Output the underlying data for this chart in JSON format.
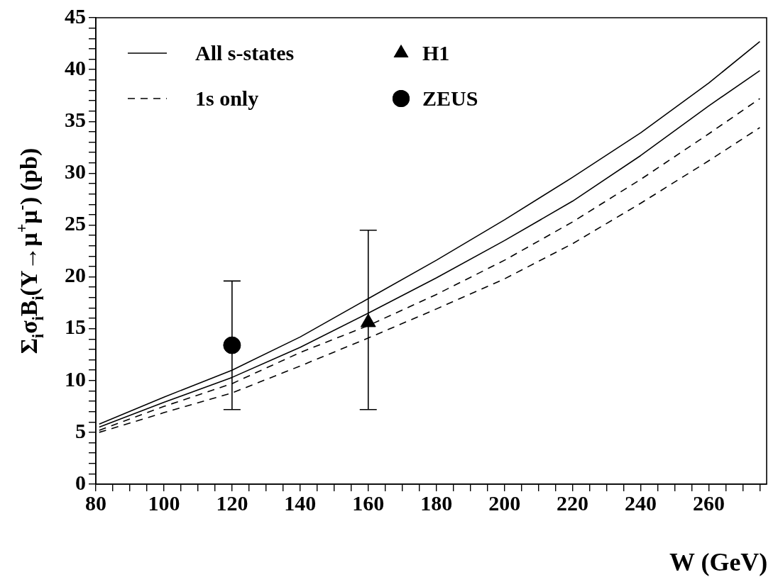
{
  "chart_data": {
    "type": "line",
    "xlabel": "W (GeV)",
    "ylabel": "Σ$_{i}$σ$_{i}$B$_{i}$(Υ→μ$^{+}$μ$^{-}$) (pb)",
    "xlim": [
      80,
      277
    ],
    "ylim": [
      0,
      45
    ],
    "xticks": [
      80,
      {
        "value": 85,
        "label": null
      },
      {
        "value": 90,
        "label": null
      },
      {
        "value": 95,
        "label": null
      },
      100,
      {
        "value": 105,
        "label": null
      },
      {
        "value": 110,
        "label": null
      },
      {
        "value": 115,
        "label": null
      },
      120,
      {
        "value": 125,
        "label": null
      },
      {
        "value": 130,
        "label": null
      },
      {
        "value": 135,
        "label": null
      },
      140,
      {
        "value": 145,
        "label": null
      },
      {
        "value": 150,
        "label": null
      },
      {
        "value": 155,
        "label": null
      },
      160,
      {
        "value": 165,
        "label": null
      },
      {
        "value": 170,
        "label": null
      },
      {
        "value": 175,
        "label": null
      },
      180,
      {
        "value": 185,
        "label": null
      },
      {
        "value": 190,
        "label": null
      },
      {
        "value": 195,
        "label": null
      },
      200,
      {
        "value": 205,
        "label": null
      },
      {
        "value": 210,
        "label": null
      },
      {
        "value": 215,
        "label": null
      },
      220,
      {
        "value": 225,
        "label": null
      },
      {
        "value": 230,
        "label": null
      },
      {
        "value": 235,
        "label": null
      },
      240,
      {
        "value": 245,
        "label": null
      },
      {
        "value": 250,
        "label": null
      },
      {
        "value": 255,
        "label": null
      },
      260,
      {
        "value": 265,
        "label": null
      },
      {
        "value": 270,
        "label": null
      },
      {
        "value": 275,
        "label": null
      }
    ],
    "yticks": [
      0,
      {
        "value": 1,
        "label": null
      },
      {
        "value": 2,
        "label": null
      },
      {
        "value": 3,
        "label": null
      },
      {
        "value": 4,
        "label": null
      },
      5,
      {
        "value": 6,
        "label": null
      },
      {
        "value": 7,
        "label": null
      },
      {
        "value": 8,
        "label": null
      },
      {
        "value": 9,
        "label": null
      },
      10,
      {
        "value": 11,
        "label": null
      },
      {
        "value": 12,
        "label": null
      },
      {
        "value": 13,
        "label": null
      },
      {
        "value": 14,
        "label": null
      },
      15,
      {
        "value": 16,
        "label": null
      },
      {
        "value": 17,
        "label": null
      },
      {
        "value": 18,
        "label": null
      },
      {
        "value": 19,
        "label": null
      },
      20,
      {
        "value": 21,
        "label": null
      },
      {
        "value": 22,
        "label": null
      },
      {
        "value": 23,
        "label": null
      },
      {
        "value": 24,
        "label": null
      },
      25,
      {
        "value": 26,
        "label": null
      },
      {
        "value": 27,
        "label": null
      },
      {
        "value": 28,
        "label": null
      },
      {
        "value": 29,
        "label": null
      },
      30,
      {
        "value": 31,
        "label": null
      },
      {
        "value": 32,
        "label": null
      },
      {
        "value": 33,
        "label": null
      },
      {
        "value": 34,
        "label": null
      },
      35,
      {
        "value": 36,
        "label": null
      },
      {
        "value": 37,
        "label": null
      },
      {
        "value": 38,
        "label": null
      },
      {
        "value": 39,
        "label": null
      },
      40,
      {
        "value": 41,
        "label": null
      },
      {
        "value": 42,
        "label": null
      },
      {
        "value": 43,
        "label": null
      },
      {
        "value": 44,
        "label": null
      },
      45
    ],
    "grid": false,
    "legend": "top left",
    "series": [
      {
        "name": "All s-states",
        "color": "#000000",
        "line_style": "solid",
        "marker": "none",
        "x": [
          81,
          100,
          120,
          140,
          160,
          180,
          200,
          220,
          240,
          260,
          275
        ],
        "values": [
          5.8,
          8.4,
          11.0,
          14.2,
          17.9,
          21.6,
          25.5,
          29.6,
          33.9,
          38.7,
          42.7
        ]
      },
      {
        "color": "#000000",
        "line_style": "solid",
        "marker": "none",
        "x": [
          81,
          100,
          120,
          140,
          160,
          180,
          200,
          220,
          240,
          260,
          275
        ],
        "values": [
          5.5,
          7.9,
          10.3,
          13.2,
          16.5,
          19.9,
          23.5,
          27.3,
          31.7,
          36.5,
          39.9
        ]
      },
      {
        "name": "1s only",
        "color": "#000000",
        "line_style": "dashed",
        "marker": "none",
        "x": [
          81,
          100,
          120,
          140,
          160,
          180,
          200,
          220,
          240,
          260,
          275
        ],
        "values": [
          5.2,
          7.5,
          9.7,
          12.7,
          15.3,
          18.3,
          21.6,
          25.3,
          29.4,
          33.8,
          37.2
        ]
      },
      {
        "color": "#000000",
        "line_style": "dashed",
        "marker": "none",
        "x": [
          81,
          100,
          120,
          140,
          160,
          180,
          200,
          220,
          240,
          260,
          275
        ],
        "values": [
          5.0,
          6.9,
          8.8,
          11.4,
          14.1,
          16.9,
          19.8,
          23.2,
          27.1,
          31.2,
          34.4
        ]
      },
      {
        "name": "H1",
        "color": "#000000",
        "type": "scatter",
        "marker": "triangle",
        "x": [
          160
        ],
        "values": [
          15.6
        ],
        "errors": [
          [
            7.2,
            24.5
          ]
        ]
      },
      {
        "name": "ZEUS",
        "color": "#000000",
        "type": "scatter",
        "marker": "circle",
        "x": [
          120
        ],
        "values": [
          13.4
        ],
        "errors": [
          [
            7.2,
            19.6
          ]
        ]
      }
    ]
  }
}
